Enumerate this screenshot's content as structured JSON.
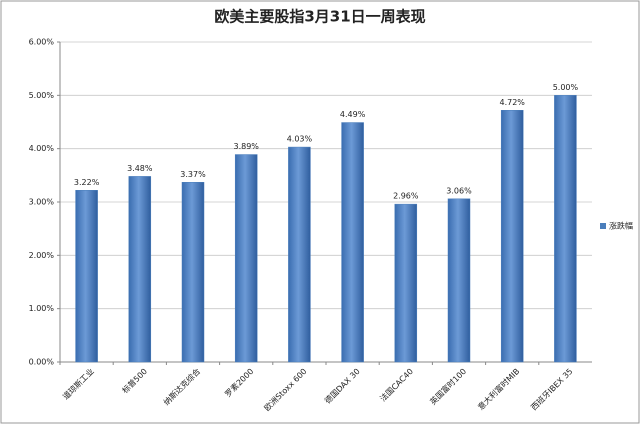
{
  "chart_data": {
    "type": "bar",
    "title": "欧美主要股指3月31日一周表现",
    "categories": [
      "道琼斯工业",
      "标普500",
      "纳斯达克综合",
      "罗素2000",
      "欧洲Stoxx 600",
      "德国DAX 30",
      "法国CAC40",
      "英国富时100",
      "意大利富时MIB",
      "西班牙IBEX 35"
    ],
    "series": [
      {
        "name": "涨跌幅",
        "color": "#4a7ebb",
        "values": [
          3.22,
          3.48,
          3.37,
          3.89,
          4.03,
          4.49,
          2.96,
          3.06,
          4.72,
          5.0
        ],
        "value_labels": [
          "3.22%",
          "3.48%",
          "3.37%",
          "3.89%",
          "4.03%",
          "4.49%",
          "2.96%",
          "3.06%",
          "4.72%",
          "5.00%"
        ]
      }
    ],
    "ylim": [
      0,
      6
    ],
    "yticks": [
      {
        "value": 0,
        "label": "0.00%"
      },
      {
        "value": 1,
        "label": "1.00%"
      },
      {
        "value": 2,
        "label": "2.00%"
      },
      {
        "value": 3,
        "label": "3.00%"
      },
      {
        "value": 4,
        "label": "4.00%"
      },
      {
        "value": 5,
        "label": "5.00%"
      },
      {
        "value": 6,
        "label": "6.00%"
      }
    ],
    "grid": true,
    "legend": "right"
  }
}
